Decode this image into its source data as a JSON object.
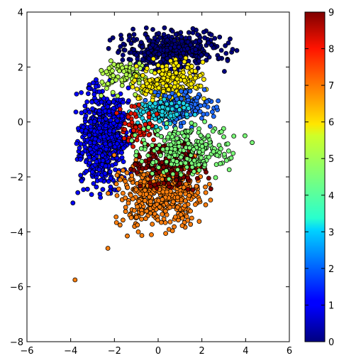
{
  "chart_data": {
    "type": "scatter",
    "title": "",
    "xlabel": "",
    "ylabel": "",
    "xlim": [
      -6,
      6
    ],
    "ylim": [
      -8,
      4
    ],
    "x_ticks": [
      "−6",
      "−4",
      "−2",
      "0",
      "2",
      "4",
      "6"
    ],
    "y_ticks": [
      "4",
      "2",
      "0",
      "−2",
      "−4",
      "−6",
      "−8"
    ],
    "grid": false,
    "colormap": "jet",
    "colorbar": {
      "min": 0,
      "max": 9,
      "ticks": [
        "0",
        "1",
        "2",
        "3",
        "4",
        "5",
        "6",
        "7",
        "8",
        "9"
      ]
    },
    "clusters": [
      {
        "value": 0,
        "color": "#00007f",
        "center": [
          0.6,
          2.6
        ],
        "spread": [
          1.2,
          0.35
        ],
        "approx_points": 420
      },
      {
        "value": 1,
        "color": "#0000ff",
        "center": [
          -2.5,
          -0.6
        ],
        "spread": [
          0.55,
          0.9
        ],
        "approx_points": 600
      },
      {
        "value": 2,
        "color": "#1f6bff",
        "center": [
          0.9,
          0.5
        ],
        "spread": [
          0.8,
          0.3
        ],
        "approx_points": 200
      },
      {
        "value": 3,
        "color": "#1ed4e6",
        "center": [
          0.2,
          0.3
        ],
        "spread": [
          0.7,
          0.25
        ],
        "approx_points": 90
      },
      {
        "value": 4,
        "color": "#7cff79",
        "center": [
          1.4,
          -1.0
        ],
        "spread": [
          1.1,
          0.45
        ],
        "approx_points": 230
      },
      {
        "value": 5,
        "color": "#b3ff4c",
        "center": [
          -1.4,
          1.6
        ],
        "spread": [
          0.55,
          0.3
        ],
        "approx_points": 90
      },
      {
        "value": 6,
        "color": "#ffea00",
        "center": [
          0.6,
          1.4
        ],
        "spread": [
          0.75,
          0.4
        ],
        "approx_points": 220
      },
      {
        "value": 7,
        "color": "#ff7f0e",
        "center": [
          0.1,
          -2.6
        ],
        "spread": [
          1.0,
          0.65
        ],
        "approx_points": 480
      },
      {
        "value": 8,
        "color": "#e11400",
        "center": [
          -1.0,
          -0.2
        ],
        "spread": [
          0.4,
          0.35
        ],
        "approx_points": 60
      },
      {
        "value": 9,
        "color": "#7f0000",
        "center": [
          0.5,
          -1.5
        ],
        "spread": [
          0.8,
          0.45
        ],
        "approx_points": 220
      }
    ],
    "outliers": [
      {
        "x": -3.8,
        "y": -5.75,
        "value": 7
      },
      {
        "x": -3.9,
        "y": -2.95,
        "value": 1
      },
      {
        "x": 4.3,
        "y": -0.75,
        "value": 4
      },
      {
        "x": 3.6,
        "y": 2.6,
        "value": 0
      },
      {
        "x": -2.3,
        "y": -4.6,
        "value": 7
      }
    ]
  }
}
